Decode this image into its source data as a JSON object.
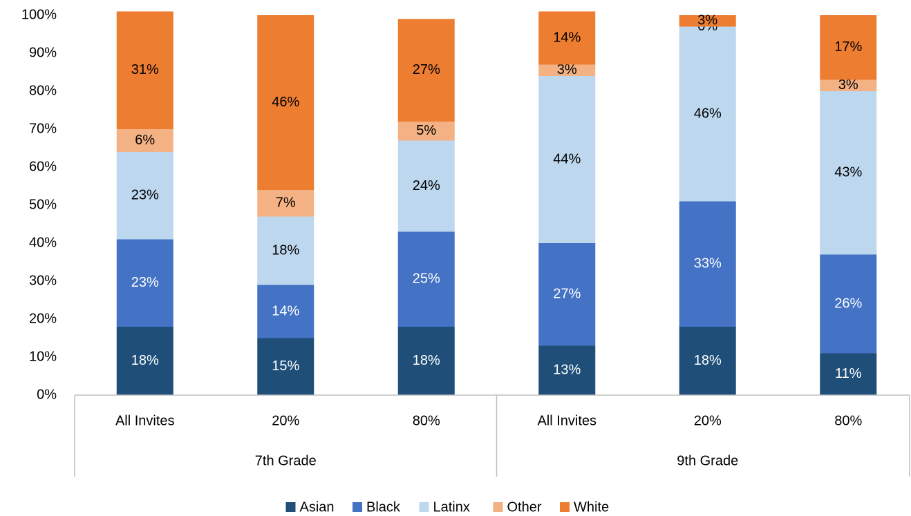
{
  "chart_data": {
    "type": "stacked_bar",
    "groups": [
      {
        "label": "7th Grade",
        "categories": [
          "All Invites",
          "20%",
          "80%"
        ]
      },
      {
        "label": "9th Grade",
        "categories": [
          "All Invites",
          "20%",
          "80%"
        ]
      }
    ],
    "series": [
      {
        "name": "Asian",
        "color": "#1f4e79",
        "label_color": "#ffffff",
        "values": [
          18,
          15,
          18,
          13,
          18,
          11
        ],
        "value_labels": [
          "18%",
          "15%",
          "18%",
          "13%",
          "18%",
          "11%"
        ]
      },
      {
        "name": "Black",
        "color": "#4472c4",
        "label_color": "#ffffff",
        "values": [
          23,
          14,
          25,
          27,
          33,
          26
        ],
        "value_labels": [
          "23%",
          "14%",
          "25%",
          "27%",
          "33%",
          "26%"
        ]
      },
      {
        "name": "Latinx",
        "color": "#bdd7ee",
        "label_color": "#000000",
        "values": [
          23,
          18,
          24,
          44,
          46,
          43
        ],
        "value_labels": [
          "23%",
          "18%",
          "24%",
          "44%",
          "46%",
          "43%"
        ]
      },
      {
        "name": "Other",
        "color": "#f4b183",
        "label_color": "#000000",
        "values": [
          6,
          7,
          5,
          3,
          0,
          3
        ],
        "value_labels": [
          "6%",
          "7%",
          "5%",
          "3%",
          "0%",
          "3%"
        ]
      },
      {
        "name": "White",
        "color": "#ed7d31",
        "label_color": "#000000",
        "values": [
          31,
          46,
          27,
          14,
          3,
          17
        ],
        "value_labels": [
          "31%",
          "46%",
          "27%",
          "14%",
          "3%",
          "17%"
        ]
      }
    ],
    "ylim": [
      0,
      100
    ],
    "yticks": [
      {
        "value": 0,
        "label": "0%"
      },
      {
        "value": 10,
        "label": "10%"
      },
      {
        "value": 20,
        "label": "20%"
      },
      {
        "value": 30,
        "label": "30%"
      },
      {
        "value": 40,
        "label": "40%"
      },
      {
        "value": 50,
        "label": "50%"
      },
      {
        "value": 60,
        "label": "60%"
      },
      {
        "value": 70,
        "label": "70%"
      },
      {
        "value": 80,
        "label": "80%"
      },
      {
        "value": 90,
        "label": "90%"
      },
      {
        "value": 100,
        "label": "100%"
      }
    ],
    "legend": "bottom"
  }
}
